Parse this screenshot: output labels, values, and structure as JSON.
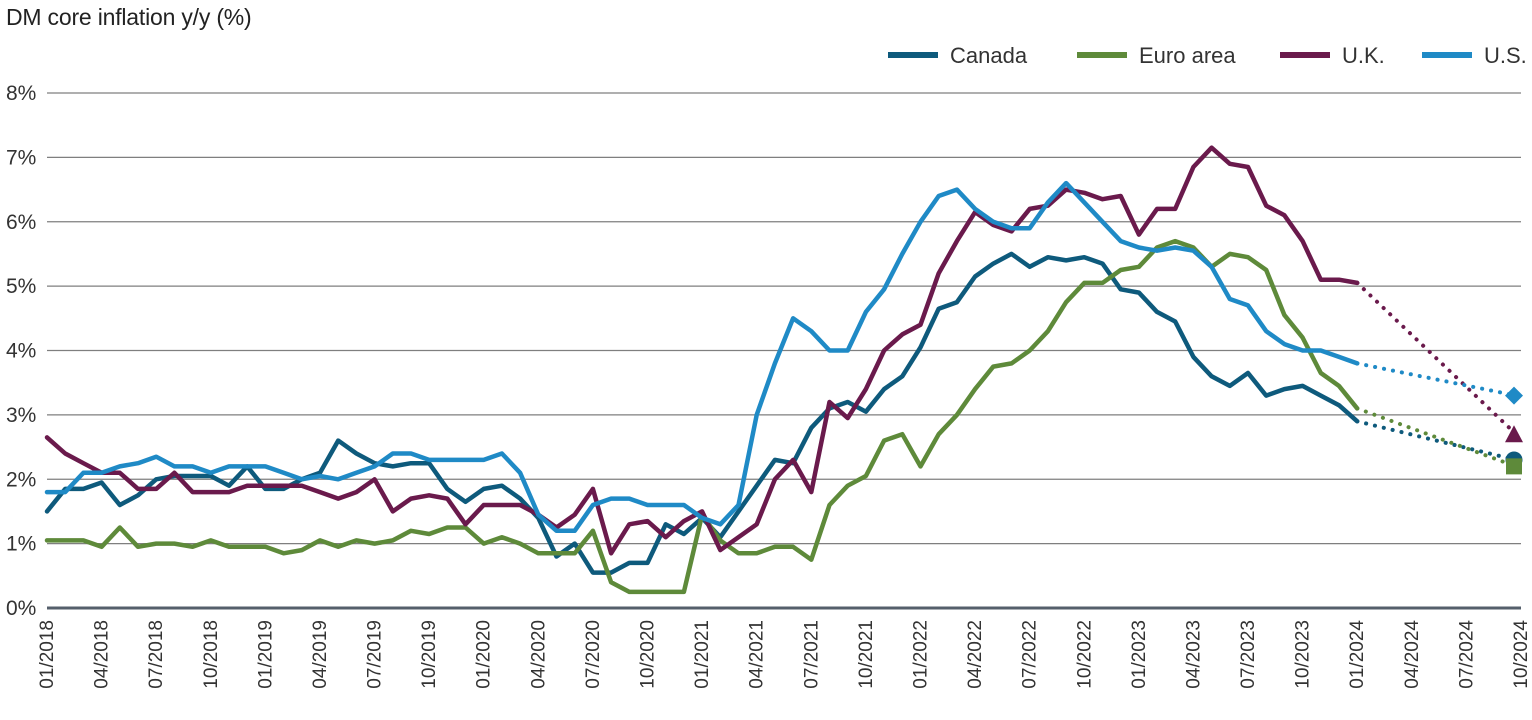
{
  "chart_data": {
    "type": "line",
    "title": "DM core inflation y/y (%)",
    "ylim": [
      0,
      8
    ],
    "y_ticks": [
      "0%",
      "1%",
      "2%",
      "3%",
      "4%",
      "5%",
      "6%",
      "7%",
      "8%"
    ],
    "x_ticks": [
      "01/2018",
      "04/2018",
      "07/2018",
      "10/2018",
      "01/2019",
      "04/2019",
      "07/2019",
      "10/2019",
      "01/2020",
      "04/2020",
      "07/2020",
      "10/2020",
      "01/2021",
      "04/2021",
      "07/2021",
      "10/2021",
      "01/2022",
      "04/2022",
      "07/2022",
      "10/2022",
      "01/2023",
      "04/2023",
      "07/2023",
      "10/2023",
      "01/2024",
      "04/2024",
      "07/2024",
      "10/2024"
    ],
    "x_start": "01/2018",
    "grid": "horizontal",
    "legend_position": "top-right",
    "series": [
      {
        "name": "Canada",
        "color": "#0e5a7c",
        "marker": "circle",
        "values": [
          1.5,
          1.85,
          1.85,
          1.95,
          1.6,
          1.75,
          2.0,
          2.05,
          2.05,
          2.05,
          1.9,
          2.2,
          1.85,
          1.85,
          2.0,
          2.1,
          2.6,
          2.4,
          2.25,
          2.2,
          2.25,
          2.25,
          1.85,
          1.65,
          1.85,
          1.9,
          1.7,
          1.4,
          0.8,
          1.0,
          0.55,
          0.55,
          0.7,
          0.7,
          1.3,
          1.15,
          1.4,
          1.1,
          1.5,
          1.9,
          2.3,
          2.25,
          2.8,
          3.1,
          3.2,
          3.05,
          3.4,
          3.6,
          4.05,
          4.65,
          4.75,
          5.15,
          5.35,
          5.5,
          5.3,
          5.45,
          5.4,
          5.45,
          5.35,
          4.95,
          4.9,
          4.6,
          4.45,
          3.9,
          3.6,
          3.45,
          3.65,
          3.3,
          3.4,
          3.45,
          3.3,
          3.15,
          2.9
        ],
        "forecast": 2.3
      },
      {
        "name": "Euro area",
        "color": "#5e8a3a",
        "marker": "square",
        "values": [
          1.05,
          1.05,
          1.05,
          0.95,
          1.25,
          0.95,
          1.0,
          1.0,
          0.95,
          1.05,
          0.95,
          0.95,
          0.95,
          0.85,
          0.9,
          1.05,
          0.95,
          1.05,
          1.0,
          1.05,
          1.2,
          1.15,
          1.25,
          1.25,
          1.0,
          1.1,
          1.0,
          0.85,
          0.85,
          0.85,
          1.2,
          0.4,
          0.25,
          0.25,
          0.25,
          0.25,
          1.45,
          1.05,
          0.85,
          0.85,
          0.95,
          0.95,
          0.75,
          1.6,
          1.9,
          2.05,
          2.6,
          2.7,
          2.2,
          2.7,
          3.0,
          3.4,
          3.75,
          3.8,
          4.0,
          4.3,
          4.75,
          5.05,
          5.05,
          5.25,
          5.3,
          5.6,
          5.7,
          5.6,
          5.3,
          5.5,
          5.45,
          5.25,
          4.55,
          4.2,
          3.65,
          3.45,
          3.1
        ],
        "forecast": 2.2
      },
      {
        "name": "U.K.",
        "color": "#6a1a4c",
        "marker": "triangle",
        "values": [
          2.65,
          2.4,
          2.25,
          2.1,
          2.1,
          1.85,
          1.85,
          2.1,
          1.8,
          1.8,
          1.8,
          1.9,
          1.9,
          1.9,
          1.9,
          1.8,
          1.7,
          1.8,
          2.0,
          1.5,
          1.7,
          1.75,
          1.7,
          1.3,
          1.6,
          1.6,
          1.6,
          1.45,
          1.25,
          1.45,
          1.85,
          0.85,
          1.3,
          1.35,
          1.1,
          1.35,
          1.5,
          0.9,
          1.1,
          1.3,
          2.0,
          2.3,
          1.8,
          3.2,
          2.95,
          3.4,
          4.0,
          4.25,
          4.4,
          5.2,
          5.7,
          6.15,
          5.95,
          5.85,
          6.2,
          6.25,
          6.5,
          6.45,
          6.35,
          6.4,
          5.8,
          6.2,
          6.2,
          6.85,
          7.15,
          6.9,
          6.85,
          6.25,
          6.1,
          5.7,
          5.1,
          5.1,
          5.05
        ],
        "forecast": 2.7
      },
      {
        "name": "U.S.",
        "color": "#1f8ac6",
        "marker": "diamond",
        "values": [
          1.8,
          1.8,
          2.1,
          2.1,
          2.2,
          2.25,
          2.35,
          2.2,
          2.2,
          2.1,
          2.2,
          2.2,
          2.2,
          2.1,
          2.0,
          2.05,
          2.0,
          2.1,
          2.2,
          2.4,
          2.4,
          2.3,
          2.3,
          2.3,
          2.3,
          2.4,
          2.1,
          1.45,
          1.2,
          1.2,
          1.6,
          1.7,
          1.7,
          1.6,
          1.6,
          1.6,
          1.4,
          1.3,
          1.6,
          3.0,
          3.8,
          4.5,
          4.3,
          4.0,
          4.0,
          4.6,
          4.95,
          5.5,
          6.0,
          6.4,
          6.5,
          6.2,
          6.0,
          5.9,
          5.9,
          6.3,
          6.6,
          6.3,
          6.0,
          5.7,
          5.6,
          5.55,
          5.6,
          5.55,
          5.3,
          4.8,
          4.7,
          4.3,
          4.1,
          4.0,
          4.0,
          3.9,
          3.8
        ],
        "forecast": 3.3
      }
    ]
  }
}
